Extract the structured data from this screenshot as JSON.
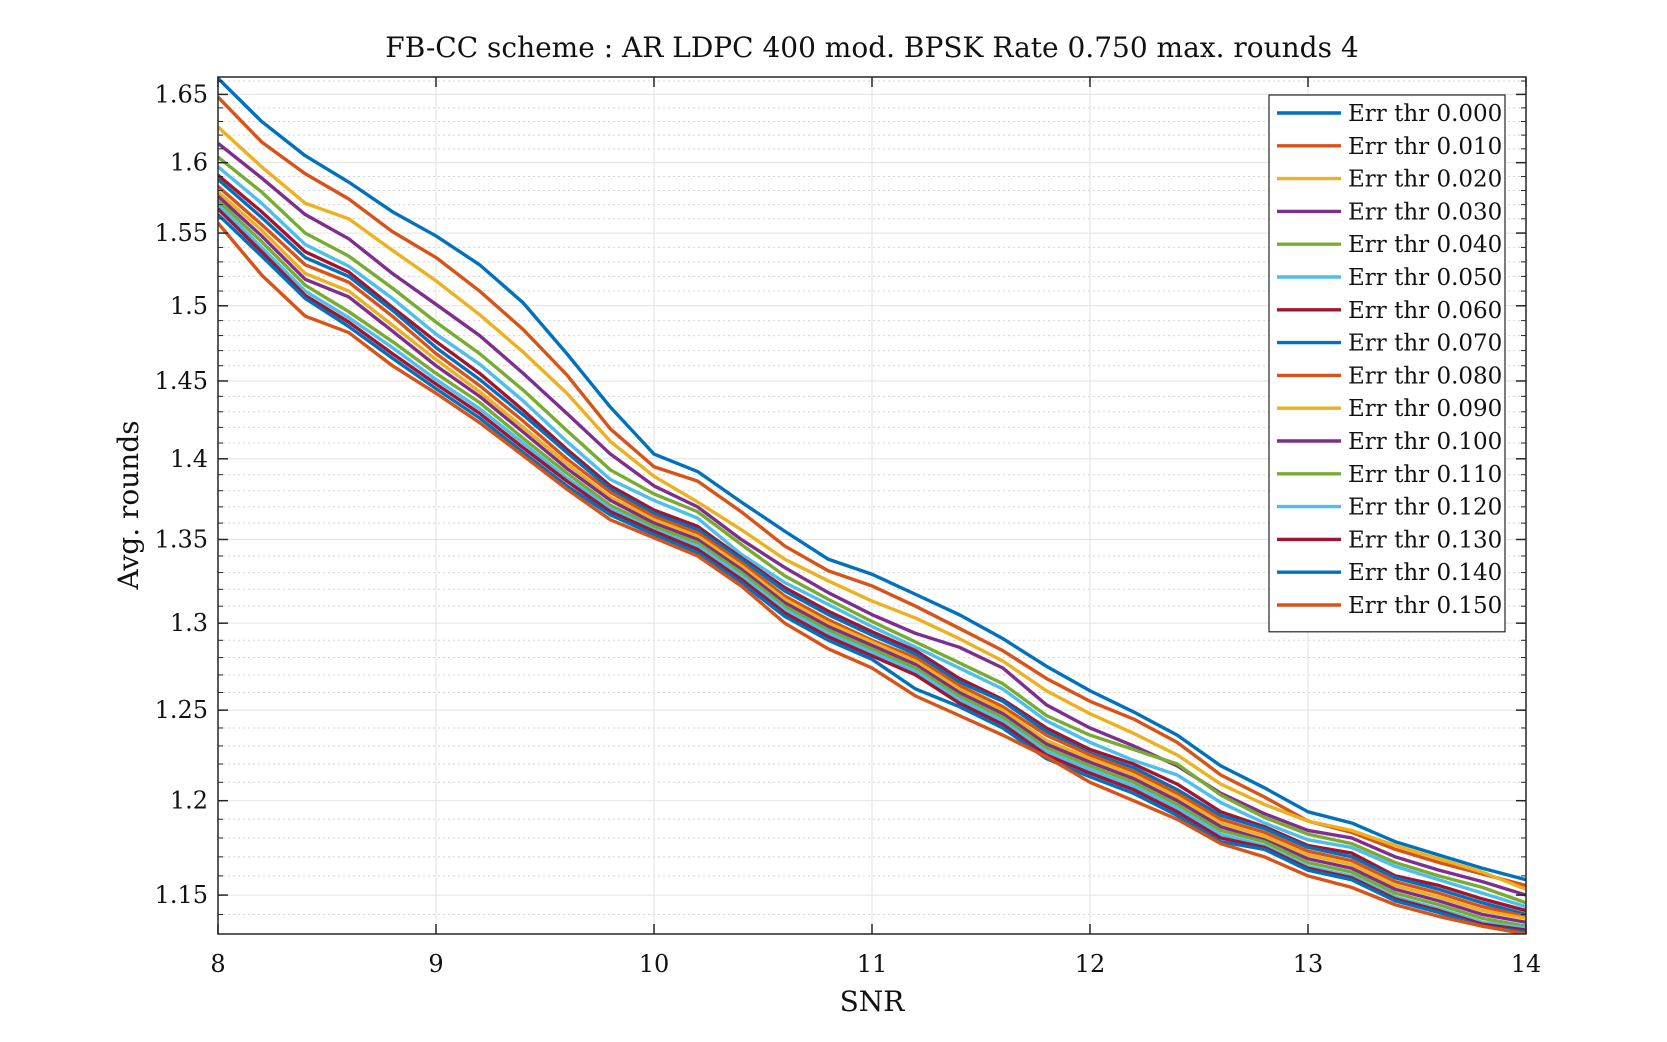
{
  "chart_data": {
    "type": "line",
    "title": "FB-CC scheme : AR LDPC 400 mod. BPSK Rate 0.750 max. rounds 4",
    "xlabel": "SNR",
    "ylabel": "Avg. rounds",
    "xlim": [
      8,
      14
    ],
    "ylim": [
      1.13,
      1.663
    ],
    "yscale": "log",
    "xticks": [
      8,
      9,
      10,
      11,
      12,
      13,
      14
    ],
    "yticks": [
      1.15,
      1.2,
      1.25,
      1.3,
      1.35,
      1.4,
      1.45,
      1.5,
      1.55,
      1.6,
      1.65
    ],
    "xtick_labels": [
      "8",
      "9",
      "10",
      "11",
      "12",
      "13",
      "14"
    ],
    "ytick_labels": [
      "1.15",
      "1.2",
      "1.25",
      "1.3",
      "1.35",
      "1.4",
      "1.45",
      "1.5",
      "1.55",
      "1.6",
      "1.65"
    ],
    "grid": true,
    "minor_grid": true,
    "legend_position": "top-right",
    "x": [
      8,
      8.2,
      8.4,
      8.6,
      8.8,
      9,
      9.2,
      9.4,
      9.6,
      9.8,
      10,
      10.2,
      10.4,
      10.6,
      10.8,
      11,
      11.2,
      11.4,
      11.6,
      11.8,
      12,
      12.2,
      12.4,
      12.6,
      12.8,
      13,
      13.2,
      13.4,
      13.6,
      13.8,
      14
    ],
    "series": [
      {
        "name": "Err thr 0.000",
        "color": "#0072BD",
        "values": [
          1.662,
          1.63,
          1.605,
          1.586,
          1.565,
          1.548,
          1.528,
          1.502,
          1.468,
          1.433,
          1.403,
          1.392,
          1.373,
          1.355,
          1.338,
          1.329,
          1.317,
          1.305,
          1.291,
          1.275,
          1.261,
          1.249,
          1.236,
          1.219,
          1.207,
          1.194,
          1.188,
          1.178,
          1.171,
          1.164,
          1.158
        ]
      },
      {
        "name": "Err thr 0.010",
        "color": "#D95319",
        "values": [
          1.648,
          1.615,
          1.592,
          1.574,
          1.551,
          1.533,
          1.51,
          1.484,
          1.454,
          1.419,
          1.395,
          1.386,
          1.367,
          1.346,
          1.331,
          1.322,
          1.31,
          1.297,
          1.284,
          1.268,
          1.255,
          1.245,
          1.232,
          1.214,
          1.202,
          1.189,
          1.183,
          1.174,
          1.167,
          1.161,
          1.155
        ]
      },
      {
        "name": "Err thr 0.020",
        "color": "#EDB120",
        "values": [
          1.626,
          1.597,
          1.571,
          1.56,
          1.538,
          1.517,
          1.494,
          1.469,
          1.442,
          1.411,
          1.389,
          1.373,
          1.356,
          1.338,
          1.325,
          1.313,
          1.303,
          1.291,
          1.278,
          1.261,
          1.248,
          1.237,
          1.225,
          1.209,
          1.198,
          1.189,
          1.184,
          1.176,
          1.169,
          1.162,
          1.153
        ]
      },
      {
        "name": "Err thr 0.030",
        "color": "#7E2F8E",
        "values": [
          1.614,
          1.589,
          1.563,
          1.546,
          1.522,
          1.501,
          1.48,
          1.455,
          1.429,
          1.403,
          1.383,
          1.37,
          1.35,
          1.333,
          1.318,
          1.305,
          1.294,
          1.286,
          1.274,
          1.253,
          1.24,
          1.23,
          1.219,
          1.204,
          1.193,
          1.184,
          1.18,
          1.17,
          1.163,
          1.157,
          1.15
        ]
      },
      {
        "name": "Err thr 0.040",
        "color": "#77AC30",
        "values": [
          1.604,
          1.579,
          1.55,
          1.534,
          1.512,
          1.489,
          1.468,
          1.444,
          1.418,
          1.393,
          1.378,
          1.367,
          1.347,
          1.328,
          1.314,
          1.301,
          1.289,
          1.277,
          1.265,
          1.247,
          1.236,
          1.228,
          1.22,
          1.203,
          1.191,
          1.182,
          1.177,
          1.167,
          1.16,
          1.154,
          1.146
        ]
      },
      {
        "name": "Err thr 0.050",
        "color": "#4DBEEE",
        "values": [
          1.597,
          1.571,
          1.542,
          1.527,
          1.505,
          1.481,
          1.461,
          1.437,
          1.411,
          1.387,
          1.374,
          1.363,
          1.341,
          1.324,
          1.311,
          1.298,
          1.286,
          1.274,
          1.262,
          1.244,
          1.232,
          1.222,
          1.214,
          1.199,
          1.188,
          1.179,
          1.175,
          1.165,
          1.158,
          1.151,
          1.144
        ]
      },
      {
        "name": "Err thr 0.060",
        "color": "#A2142F",
        "values": [
          1.591,
          1.565,
          1.537,
          1.523,
          1.499,
          1.476,
          1.455,
          1.431,
          1.406,
          1.383,
          1.368,
          1.358,
          1.339,
          1.321,
          1.307,
          1.295,
          1.284,
          1.268,
          1.256,
          1.24,
          1.228,
          1.22,
          1.209,
          1.194,
          1.186,
          1.176,
          1.172,
          1.16,
          1.155,
          1.148,
          1.142
        ]
      },
      {
        "name": "Err thr 0.070",
        "color": "#0072BD",
        "values": [
          1.588,
          1.561,
          1.533,
          1.52,
          1.497,
          1.472,
          1.451,
          1.428,
          1.404,
          1.381,
          1.366,
          1.356,
          1.338,
          1.319,
          1.305,
          1.293,
          1.282,
          1.266,
          1.255,
          1.238,
          1.226,
          1.218,
          1.206,
          1.192,
          1.185,
          1.175,
          1.17,
          1.159,
          1.153,
          1.146,
          1.14
        ]
      },
      {
        "name": "Err thr 0.080",
        "color": "#D95319",
        "values": [
          1.583,
          1.556,
          1.528,
          1.516,
          1.493,
          1.468,
          1.447,
          1.424,
          1.4,
          1.379,
          1.364,
          1.354,
          1.336,
          1.316,
          1.302,
          1.29,
          1.28,
          1.264,
          1.252,
          1.236,
          1.225,
          1.216,
          1.204,
          1.19,
          1.183,
          1.173,
          1.168,
          1.157,
          1.151,
          1.144,
          1.139
        ]
      },
      {
        "name": "Err thr 0.090",
        "color": "#EDB120",
        "values": [
          1.579,
          1.552,
          1.522,
          1.51,
          1.487,
          1.464,
          1.443,
          1.42,
          1.397,
          1.376,
          1.362,
          1.352,
          1.334,
          1.314,
          1.3,
          1.289,
          1.278,
          1.262,
          1.25,
          1.233,
          1.223,
          1.214,
          1.202,
          1.188,
          1.181,
          1.171,
          1.166,
          1.155,
          1.149,
          1.142,
          1.138
        ]
      },
      {
        "name": "Err thr 0.100",
        "color": "#7E2F8E",
        "values": [
          1.576,
          1.548,
          1.518,
          1.506,
          1.483,
          1.46,
          1.44,
          1.417,
          1.394,
          1.374,
          1.36,
          1.35,
          1.332,
          1.312,
          1.298,
          1.287,
          1.276,
          1.26,
          1.248,
          1.231,
          1.221,
          1.212,
          1.2,
          1.186,
          1.179,
          1.169,
          1.164,
          1.153,
          1.147,
          1.14,
          1.136
        ]
      },
      {
        "name": "Err thr 0.110",
        "color": "#77AC30",
        "values": [
          1.573,
          1.544,
          1.514,
          1.496,
          1.476,
          1.455,
          1.436,
          1.413,
          1.391,
          1.371,
          1.358,
          1.348,
          1.33,
          1.31,
          1.296,
          1.285,
          1.274,
          1.258,
          1.246,
          1.229,
          1.219,
          1.21,
          1.198,
          1.184,
          1.178,
          1.167,
          1.162,
          1.151,
          1.145,
          1.138,
          1.134
        ]
      },
      {
        "name": "Err thr 0.120",
        "color": "#4DBEEE",
        "values": [
          1.57,
          1.54,
          1.51,
          1.492,
          1.472,
          1.451,
          1.432,
          1.41,
          1.388,
          1.369,
          1.356,
          1.346,
          1.328,
          1.308,
          1.294,
          1.283,
          1.272,
          1.256,
          1.244,
          1.227,
          1.217,
          1.208,
          1.196,
          1.182,
          1.176,
          1.165,
          1.16,
          1.149,
          1.143,
          1.136,
          1.133
        ]
      },
      {
        "name": "Err thr 0.130",
        "color": "#A2142F",
        "values": [
          1.567,
          1.537,
          1.507,
          1.489,
          1.468,
          1.448,
          1.429,
          1.407,
          1.386,
          1.367,
          1.355,
          1.344,
          1.326,
          1.306,
          1.292,
          1.281,
          1.27,
          1.254,
          1.242,
          1.225,
          1.215,
          1.206,
          1.194,
          1.18,
          1.175,
          1.164,
          1.159,
          1.148,
          1.142,
          1.135,
          1.132
        ]
      },
      {
        "name": "Err thr 0.140",
        "color": "#0072BD",
        "values": [
          1.563,
          1.534,
          1.505,
          1.486,
          1.465,
          1.445,
          1.426,
          1.404,
          1.383,
          1.365,
          1.353,
          1.342,
          1.324,
          1.304,
          1.29,
          1.279,
          1.262,
          1.252,
          1.24,
          1.223,
          1.213,
          1.204,
          1.192,
          1.178,
          1.174,
          1.163,
          1.158,
          1.147,
          1.141,
          1.134,
          1.131
        ]
      },
      {
        "name": "Err thr 0.150",
        "color": "#D95319",
        "values": [
          1.557,
          1.521,
          1.493,
          1.482,
          1.46,
          1.442,
          1.423,
          1.402,
          1.381,
          1.362,
          1.351,
          1.34,
          1.322,
          1.3,
          1.285,
          1.274,
          1.258,
          1.247,
          1.236,
          1.224,
          1.21,
          1.2,
          1.19,
          1.177,
          1.17,
          1.16,
          1.154,
          1.145,
          1.139,
          1.134,
          1.13
        ]
      }
    ]
  }
}
